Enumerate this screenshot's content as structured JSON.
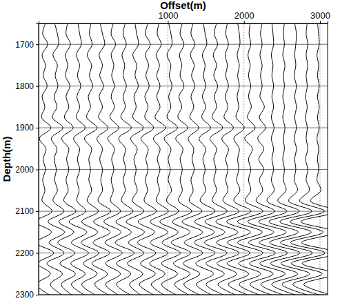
{
  "chart_data": {
    "type": "wiggle",
    "x_label": "Offset(m)",
    "y_label": "Depth(m)",
    "xlim": [
      -700,
      3100
    ],
    "ylim": [
      1650,
      2300
    ],
    "xticks": [
      1000,
      2000,
      3000
    ],
    "yticks": [
      1700,
      1800,
      1900,
      2000,
      2100,
      2200,
      2300
    ],
    "grid": true,
    "color": "#000000",
    "depths": [
      1650,
      1675,
      1700,
      1725,
      1750,
      1775,
      1800,
      1825,
      1850,
      1875,
      1900,
      1925,
      1950,
      1975,
      2000,
      2025,
      2050,
      2075,
      2100,
      2125,
      2150,
      2175,
      2200,
      2225,
      2250,
      2275,
      2300
    ],
    "traces": [
      {
        "offset": -625,
        "values": [
          0.2,
          -0.3,
          0.6,
          -0.4,
          0.2,
          -0.2,
          0.5,
          -0.4,
          0.1,
          -0.5,
          1.2,
          -0.9,
          0.3,
          -0.2,
          0.2,
          -0.3,
          0.1,
          -0.4,
          1.4,
          -1.6,
          1.3,
          -1.5,
          1.7,
          -1.2,
          1.1,
          -1.4,
          0.9
        ]
      },
      {
        "offset": -475,
        "values": [
          -0.2,
          0.3,
          0.5,
          -0.5,
          0.3,
          -0.1,
          0.4,
          -0.3,
          0.2,
          -0.6,
          1.3,
          -0.8,
          0.2,
          -0.3,
          0.1,
          -0.2,
          0.3,
          -0.5,
          1.5,
          -1.4,
          1.6,
          -1.2,
          1.5,
          -1.6,
          1.2,
          -1.0,
          1.1
        ]
      },
      {
        "offset": -325,
        "values": [
          0.1,
          -0.2,
          0.6,
          -0.3,
          0.1,
          -0.3,
          0.5,
          -0.2,
          0.3,
          -0.5,
          1.1,
          -1.0,
          0.3,
          -0.1,
          0.3,
          -0.2,
          0.2,
          -0.6,
          1.6,
          -1.5,
          1.2,
          -1.7,
          1.4,
          -1.3,
          1.5,
          -1.1,
          0.8
        ]
      },
      {
        "offset": -175,
        "values": [
          -0.1,
          0.2,
          0.5,
          -0.4,
          0.2,
          -0.2,
          0.4,
          -0.3,
          0.2,
          -0.4,
          1.2,
          -0.9,
          0.2,
          -0.2,
          0.2,
          -0.3,
          0.1,
          -0.3,
          1.3,
          -1.7,
          1.5,
          -1.3,
          1.8,
          -1.4,
          1.2,
          -1.3,
          1.0
        ]
      },
      {
        "offset": -25,
        "values": [
          0.2,
          -0.1,
          0.4,
          -0.5,
          0.3,
          -0.1,
          0.5,
          -0.3,
          0.1,
          -0.6,
          1.3,
          -1.0,
          0.3,
          -0.2,
          0.1,
          -0.2,
          0.3,
          -0.5,
          1.5,
          -1.5,
          1.4,
          -1.6,
          1.6,
          -1.2,
          1.3,
          -1.5,
          0.9
        ]
      },
      {
        "offset": 125,
        "values": [
          -0.2,
          0.2,
          0.6,
          -0.4,
          0.2,
          -0.3,
          0.4,
          -0.4,
          0.2,
          -0.5,
          1.2,
          -0.8,
          0.2,
          -0.3,
          0.2,
          -0.1,
          0.2,
          -0.6,
          1.7,
          -1.4,
          1.6,
          -1.5,
          1.5,
          -1.7,
          1.1,
          -1.2,
          1.2
        ]
      },
      {
        "offset": 275,
        "values": [
          0.1,
          -0.3,
          0.5,
          -0.3,
          0.2,
          -0.2,
          0.3,
          -0.3,
          0.3,
          -0.5,
          1.1,
          -0.9,
          0.3,
          -0.2,
          0.2,
          -0.3,
          0.1,
          -0.4,
          1.4,
          -1.6,
          1.5,
          -1.4,
          1.7,
          -1.3,
          1.4,
          -1.3,
          1.0
        ]
      },
      {
        "offset": 425,
        "values": [
          0.2,
          -0.2,
          0.4,
          -0.4,
          0.1,
          -0.2,
          0.4,
          -0.2,
          0.2,
          -0.6,
          1.3,
          -1.0,
          0.2,
          -0.1,
          0.3,
          -0.2,
          0.2,
          -0.5,
          1.6,
          -1.5,
          1.3,
          -1.6,
          1.8,
          -1.4,
          1.2,
          -1.4,
          1.1
        ]
      },
      {
        "offset": 575,
        "values": [
          -0.1,
          0.2,
          0.5,
          -0.5,
          0.2,
          -0.1,
          0.5,
          -0.3,
          0.1,
          -0.5,
          1.4,
          -0.9,
          0.3,
          -0.3,
          0.1,
          -0.2,
          0.3,
          -0.6,
          1.5,
          -1.7,
          1.6,
          -1.3,
          1.5,
          -1.5,
          1.3,
          -1.1,
          0.9
        ]
      },
      {
        "offset": 725,
        "values": [
          0.2,
          -0.3,
          0.6,
          -0.3,
          0.3,
          -0.2,
          0.4,
          -0.4,
          0.2,
          -0.4,
          1.2,
          -1.1,
          0.2,
          -0.2,
          0.2,
          -0.3,
          0.1,
          -0.5,
          1.7,
          -1.6,
          1.4,
          -1.7,
          1.6,
          -1.2,
          1.5,
          -1.4,
          1.2
        ]
      },
      {
        "offset": 875,
        "values": [
          0.1,
          -0.2,
          0.5,
          -0.4,
          0.2,
          -0.3,
          0.3,
          -0.3,
          0.3,
          -0.6,
          1.3,
          -0.9,
          0.3,
          -0.2,
          0.3,
          -0.2,
          0.2,
          -0.4,
          1.8,
          -1.5,
          1.7,
          -1.5,
          1.7,
          -1.6,
          1.2,
          -1.3,
          1.0
        ]
      },
      {
        "offset": 1025,
        "values": [
          -0.2,
          0.2,
          0.4,
          -0.5,
          0.2,
          -0.1,
          0.4,
          -0.2,
          0.2,
          -0.5,
          1.4,
          -1.0,
          0.2,
          -0.3,
          0.1,
          -0.3,
          0.3,
          -0.6,
          1.6,
          -1.8,
          1.5,
          -1.4,
          1.9,
          -1.5,
          1.4,
          -1.5,
          1.1
        ]
      },
      {
        "offset": 1175,
        "values": [
          0.2,
          -0.2,
          0.5,
          -0.3,
          0.1,
          -0.2,
          0.5,
          -0.4,
          0.1,
          -0.6,
          1.2,
          -1.0,
          0.3,
          -0.2,
          0.2,
          -0.2,
          0.2,
          -0.5,
          1.9,
          -1.6,
          1.6,
          -1.8,
          1.7,
          -1.4,
          1.6,
          -1.2,
          1.3
        ]
      },
      {
        "offset": 1325,
        "values": [
          0.1,
          -0.3,
          0.4,
          -0.4,
          0.3,
          -0.2,
          0.4,
          -0.3,
          0.2,
          -0.5,
          1.1,
          -0.8,
          0.2,
          -0.1,
          0.3,
          -0.3,
          0.1,
          -0.6,
          1.7,
          -1.9,
          1.8,
          -1.5,
          1.8,
          -1.7,
          1.3,
          -1.6,
          1.2
        ]
      },
      {
        "offset": 1475,
        "values": [
          -0.1,
          0.2,
          0.5,
          -0.3,
          0.2,
          -0.1,
          0.3,
          -0.3,
          0.3,
          -0.4,
          1.2,
          -0.9,
          0.3,
          -0.2,
          0.2,
          -0.2,
          0.3,
          -0.7,
          2.0,
          -1.7,
          1.9,
          -1.8,
          2.0,
          -1.5,
          1.7,
          -1.4,
          1.3
        ]
      },
      {
        "offset": 1625,
        "values": [
          0.2,
          -0.2,
          0.4,
          -0.4,
          0.2,
          -0.3,
          0.4,
          -0.2,
          0.2,
          -0.6,
          1.3,
          -1.0,
          0.2,
          -0.3,
          0.1,
          -0.3,
          0.2,
          -0.6,
          2.1,
          -1.9,
          1.7,
          -2.0,
          2.1,
          -1.7,
          1.6,
          -1.7,
          1.4
        ]
      },
      {
        "offset": 1775,
        "values": [
          0.1,
          -0.2,
          0.3,
          -0.3,
          0.1,
          -0.2,
          0.3,
          -0.3,
          0.2,
          -0.5,
          1.2,
          -0.9,
          0.3,
          -0.2,
          0.2,
          -0.2,
          0.2,
          -0.7,
          2.2,
          -2.0,
          2.0,
          -1.9,
          2.2,
          -1.8,
          1.8,
          -1.6,
          1.5
        ]
      },
      {
        "offset": 1925,
        "values": [
          -0.1,
          0.2,
          0.3,
          -0.2,
          0.2,
          -0.1,
          0.2,
          -0.2,
          0.1,
          -0.4,
          1.1,
          -0.8,
          0.2,
          -0.1,
          0.1,
          -0.3,
          0.3,
          -0.8,
          2.3,
          -2.1,
          2.2,
          -2.0,
          2.1,
          -2.0,
          1.9,
          -1.8,
          1.6
        ]
      },
      {
        "offset": 2075,
        "values": [
          0.1,
          -0.1,
          0.2,
          -0.3,
          0.1,
          -0.2,
          0.2,
          -0.2,
          0.3,
          -0.4,
          1.0,
          -0.9,
          0.5,
          -0.2,
          0.2,
          -0.2,
          0.2,
          -0.8,
          2.4,
          -2.2,
          2.3,
          -2.2,
          2.4,
          -2.0,
          2.0,
          -1.9,
          1.7
        ]
      },
      {
        "offset": 2225,
        "values": [
          0.2,
          -0.1,
          0.2,
          -0.2,
          0.2,
          -0.1,
          0.2,
          -0.2,
          0.6,
          -0.3,
          0.8,
          -0.6,
          0.5,
          -0.4,
          0.5,
          -0.3,
          0.3,
          -0.9,
          2.5,
          -2.4,
          2.3,
          -2.3,
          2.6,
          -2.1,
          2.2,
          -2.0,
          1.8
        ]
      },
      {
        "offset": 2375,
        "values": [
          -0.1,
          0.1,
          0.2,
          -0.2,
          0.1,
          -0.1,
          0.2,
          -0.1,
          0.2,
          -0.2,
          0.3,
          -0.2,
          0.2,
          -0.1,
          0.2,
          -0.2,
          0.3,
          -1.0,
          2.6,
          -2.5,
          2.5,
          -2.4,
          2.7,
          -2.3,
          2.3,
          -2.1,
          1.9
        ]
      },
      {
        "offset": 2525,
        "values": [
          0.1,
          -0.1,
          0.1,
          -0.2,
          0.2,
          -0.1,
          0.1,
          -0.2,
          0.1,
          -0.2,
          0.2,
          -0.1,
          0.1,
          -0.2,
          0.1,
          -0.1,
          0.4,
          -1.1,
          2.8,
          -2.7,
          2.6,
          -2.6,
          2.9,
          -2.4,
          2.5,
          -2.2,
          2.0
        ]
      },
      {
        "offset": 2675,
        "values": [
          -0.1,
          0.2,
          0.1,
          -0.1,
          0.1,
          -0.2,
          0.2,
          -0.1,
          0.2,
          -0.1,
          0.2,
          -0.2,
          0.2,
          -0.1,
          0.1,
          -0.2,
          0.4,
          -1.2,
          3.0,
          -2.8,
          2.9,
          -2.7,
          3.1,
          -2.6,
          2.6,
          -2.4,
          2.1
        ]
      },
      {
        "offset": 2825,
        "values": [
          0.1,
          -0.1,
          0.2,
          -0.1,
          0.2,
          -0.1,
          0.1,
          -0.2,
          0.1,
          -0.2,
          0.1,
          -0.1,
          0.2,
          -0.2,
          0.2,
          -0.1,
          0.5,
          -1.3,
          3.2,
          -3.0,
          3.0,
          -2.9,
          3.3,
          -2.8,
          2.8,
          -2.5,
          2.2
        ]
      },
      {
        "offset": 2975,
        "values": [
          -0.1,
          0.1,
          0.2,
          -0.2,
          0.1,
          -0.1,
          0.2,
          -0.1,
          0.2,
          -0.1,
          0.2,
          -0.2,
          0.1,
          -0.1,
          0.1,
          -0.2,
          0.5,
          -1.4,
          3.3,
          -3.1,
          3.2,
          -3.0,
          3.4,
          -2.9,
          2.9,
          -2.6,
          2.3
        ]
      }
    ]
  }
}
